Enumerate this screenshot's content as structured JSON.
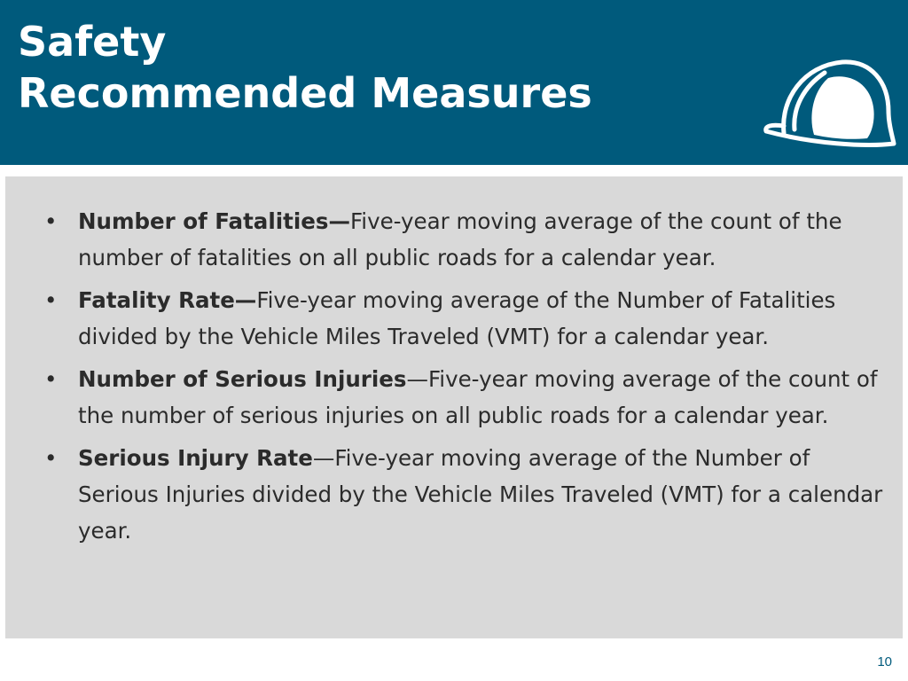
{
  "slide": {
    "title_line1": "Safety",
    "title_line2": "Recommended Measures",
    "page_number": "10",
    "header_icon": "hard-hat-icon",
    "colors": {
      "header_background": "#005a7c",
      "content_background": "#d9d9d9",
      "title_text": "#ffffff",
      "body_text": "#2b2b2b",
      "page_number": "#005a7c"
    }
  },
  "measures": [
    {
      "term": "Number of Fatalities—",
      "description": "Five-year moving average of the count of the number of fatalities on all public roads for a calendar year."
    },
    {
      "term": "Fatality Rate—",
      "description": "Five-year moving average of the Number of Fatalities divided by the Vehicle Miles Traveled (VMT) for a calendar year."
    },
    {
      "term": "Number of Serious Injuries",
      "description": "—Five-year moving average of the count of the number of serious injuries on all public roads for a calendar year."
    },
    {
      "term": "Serious Injury Rate",
      "description": "—Five-year moving average of the Number of Serious Injuries divided by the Vehicle Miles Traveled (VMT) for a calendar year."
    }
  ]
}
